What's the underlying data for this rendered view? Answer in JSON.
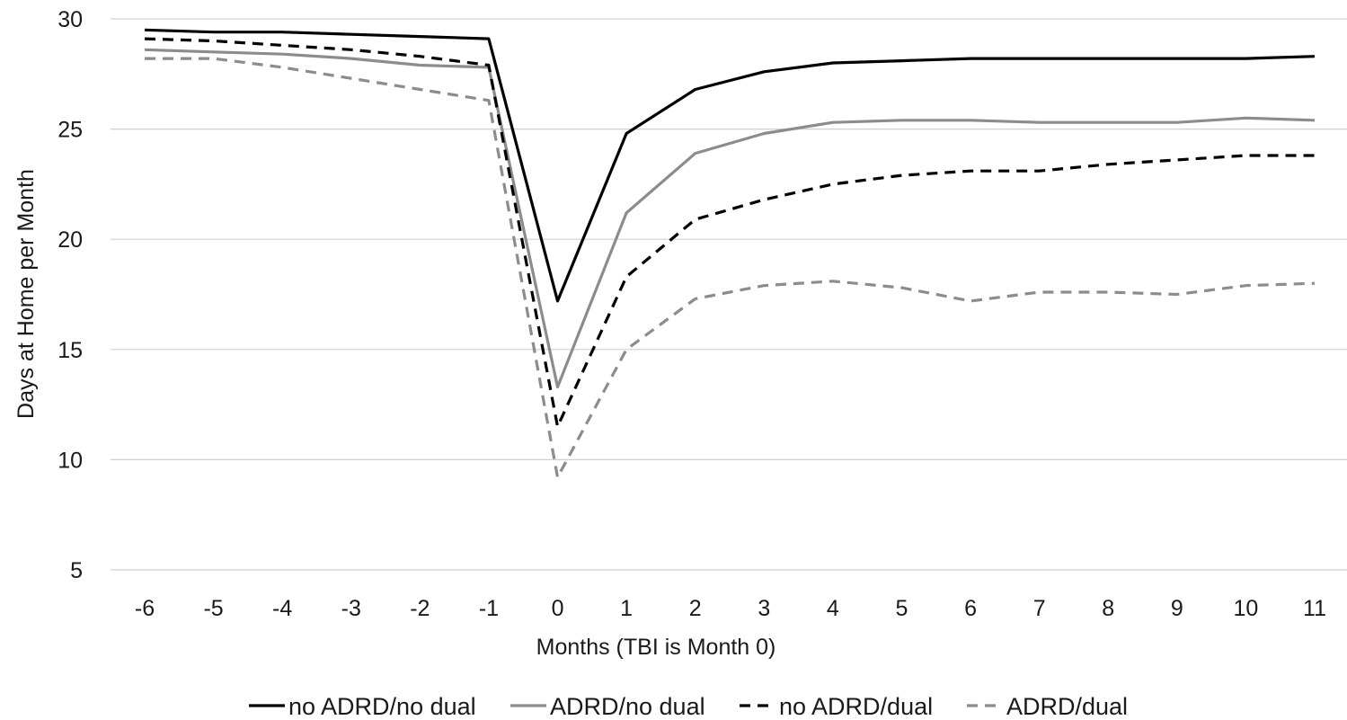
{
  "chart_data": {
    "type": "line",
    "title": "",
    "xlabel": "Months (TBI is Month 0)",
    "ylabel": "Days at Home per Month",
    "x": [
      "-6",
      "-5",
      "-4",
      "-3",
      "-2",
      "-1",
      "0",
      "1",
      "2",
      "3",
      "4",
      "5",
      "6",
      "7",
      "8",
      "9",
      "10",
      "11"
    ],
    "ylim": [
      5,
      30
    ],
    "yticks": [
      "5",
      "10",
      "15",
      "20",
      "25",
      "30"
    ],
    "grid": "horizontal",
    "legend_position": "bottom",
    "series": [
      {
        "name": "no ADRD/no dual",
        "color": "#000000",
        "line_style": "solid",
        "values": [
          29.5,
          29.4,
          29.4,
          29.3,
          29.2,
          29.1,
          17.2,
          24.8,
          26.8,
          27.6,
          28.0,
          28.1,
          28.2,
          28.2,
          28.2,
          28.2,
          28.2,
          28.3
        ]
      },
      {
        "name": "ADRD/no dual",
        "color": "#8c8c8c",
        "line_style": "solid",
        "values": [
          28.6,
          28.5,
          28.4,
          28.2,
          27.9,
          27.8,
          13.3,
          21.2,
          23.9,
          24.8,
          25.3,
          25.4,
          25.4,
          25.3,
          25.3,
          25.3,
          25.5,
          25.4
        ]
      },
      {
        "name": "no ADRD/dual",
        "color": "#000000",
        "line_style": "dashed",
        "values": [
          29.1,
          29.0,
          28.8,
          28.6,
          28.3,
          27.9,
          11.5,
          18.3,
          20.9,
          21.8,
          22.5,
          22.9,
          23.1,
          23.1,
          23.4,
          23.6,
          23.8,
          23.8
        ]
      },
      {
        "name": "ADRD/dual",
        "color": "#8c8c8c",
        "line_style": "dashed",
        "values": [
          28.2,
          28.2,
          27.8,
          27.3,
          26.8,
          26.3,
          9.2,
          15.0,
          17.3,
          17.9,
          18.1,
          17.8,
          17.2,
          17.6,
          17.6,
          17.5,
          17.9,
          18.0
        ]
      }
    ]
  }
}
